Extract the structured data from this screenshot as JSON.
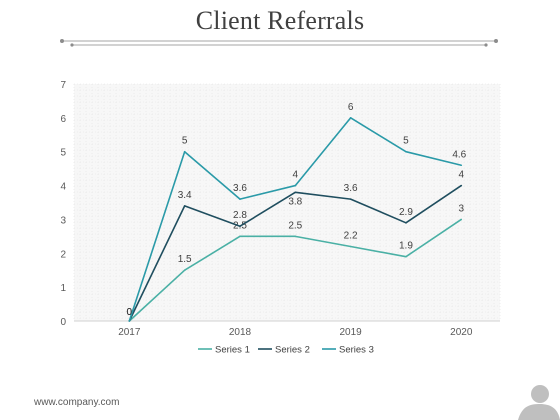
{
  "slide": {
    "title": "Client Referrals",
    "footer_url": "www.company.com",
    "rule_color": "#a6a6a6"
  },
  "chart_data": {
    "type": "line",
    "x": [
      2017,
      2017.5,
      2018,
      2018.5,
      2019,
      2019.5,
      2020
    ],
    "x_ticks": [
      "2017",
      "2018",
      "2019",
      "2020"
    ],
    "x_tick_values": [
      2017,
      2018,
      2019,
      2020
    ],
    "ylim": [
      0,
      7
    ],
    "y_ticks": [
      0,
      1,
      2,
      3,
      4,
      5,
      6,
      7
    ],
    "grid": true,
    "legend": "bottom",
    "series": [
      {
        "name": "Series 1",
        "color": "#4ab0a5",
        "values": [
          0,
          1.5,
          2.5,
          2.5,
          2.2,
          1.9,
          3
        ],
        "labels": [
          "0",
          "1.5",
          "2.5",
          "2.5",
          "2.2",
          "1.9",
          "3"
        ]
      },
      {
        "name": "Series 2",
        "color": "#1f4e5f",
        "values": [
          0,
          3.4,
          2.8,
          3.8,
          3.6,
          2.9,
          4
        ],
        "labels": [
          "0",
          "3.4",
          "2.8",
          "3.8",
          "3.6",
          "2.9",
          "4"
        ]
      },
      {
        "name": "Series 3",
        "color": "#2a9aa8",
        "values": [
          0,
          5,
          3.6,
          4,
          6,
          5,
          4.6
        ],
        "labels": [
          "0",
          "5",
          "3.6",
          "4",
          "6",
          "5",
          "4.6"
        ]
      }
    ]
  }
}
